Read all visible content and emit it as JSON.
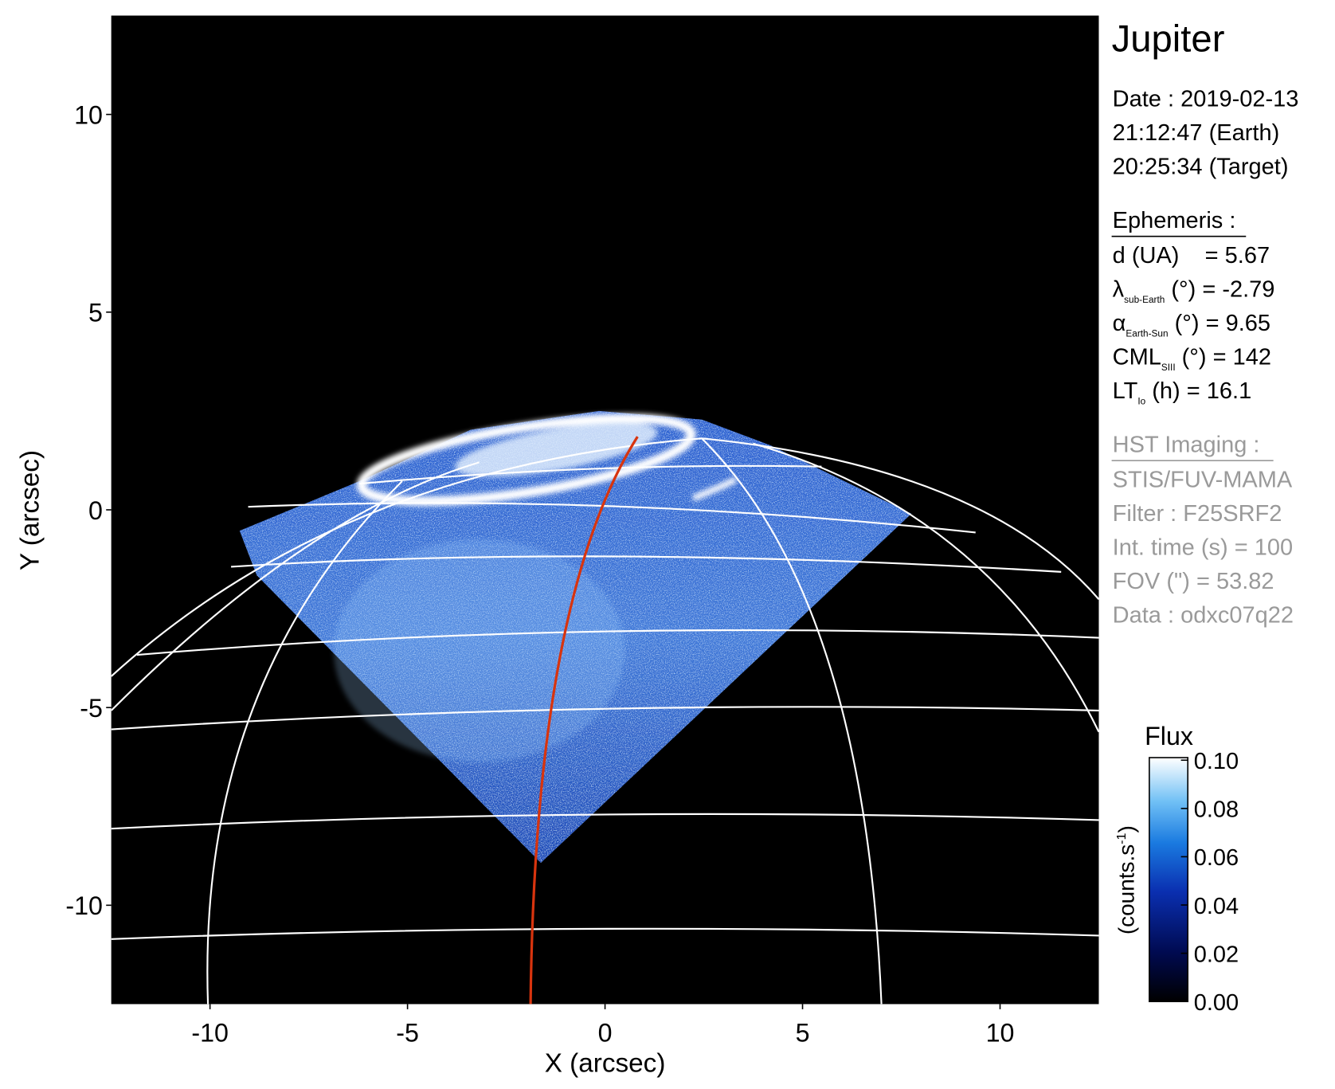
{
  "chart_data": {
    "type": "image",
    "xlabel": "X (arcsec)",
    "ylabel": "Y (arcsec)",
    "xlim": [
      -12.5,
      12.5
    ],
    "ylim": [
      -12.5,
      12.5
    ],
    "xticks": [
      -10,
      -5,
      0,
      5,
      10
    ],
    "yticks": [
      -10,
      -5,
      0,
      5,
      10
    ],
    "colorbar": {
      "title": "Flux",
      "label": [
        "(counts.s",
        "-1",
        ")"
      ],
      "clim": [
        0,
        0.1
      ],
      "ticks": [
        {
          "value": 0,
          "label": "0.00"
        },
        {
          "value": 0.02,
          "label": "0.02"
        },
        {
          "value": 0.04,
          "label": "0.04"
        },
        {
          "value": 0.06,
          "label": "0.06"
        },
        {
          "value": 0.08,
          "label": "0.08"
        },
        {
          "value": 0.1,
          "label": "0.10"
        }
      ]
    }
  },
  "info": {
    "title": "Jupiter",
    "date": [
      "Date : 2019-02-13",
      "21:12:47 (Earth)",
      "20:25:34 (Target)"
    ],
    "ephemeris": {
      "heading": "Ephemeris :",
      "lines": [
        [
          "d (UA)    = 5.67"
        ],
        [
          "λ",
          "sub-Earth",
          " (°) = -2.79"
        ],
        [
          "α",
          "Earth-Sun",
          " (°) = 9.65"
        ],
        [
          "CML",
          "SIII",
          " (°) = 142"
        ],
        [
          "LT",
          "Io",
          " (h) = 16.1"
        ]
      ]
    },
    "imaging": {
      "heading": "HST Imaging :",
      "lines": [
        [
          "STIS/FUV-MAMA"
        ],
        [
          "Filter : F25SRF2"
        ],
        [
          "Int. time (s) = 100"
        ],
        [
          "FOV (\") = 53.82"
        ],
        [
          "Data : odxc07q22"
        ]
      ]
    }
  }
}
